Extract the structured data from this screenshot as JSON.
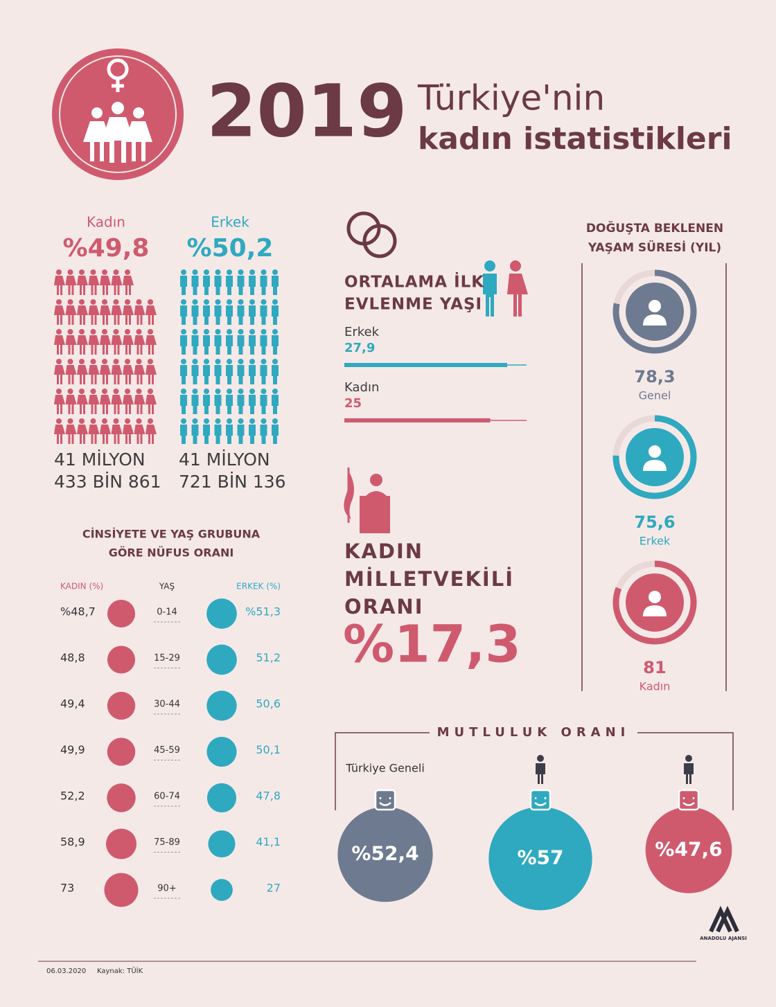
{
  "header": {
    "year": "2019",
    "title_line1": "Türkiye'nin",
    "title_line2": "kadın istatistikleri"
  },
  "population": {
    "labels": [
      "Kadın",
      "Erkek"
    ],
    "shares": [
      "%49,8",
      "%50,2"
    ],
    "counts": [
      [
        "41 MİLYON",
        "433 BİN 861"
      ],
      [
        "41 MİLYON",
        "721 BİN 136"
      ]
    ],
    "colors": [
      "#cf5a6e",
      "#2fa9bf"
    ]
  },
  "marriage": {
    "title_lines": [
      "ORTALAMA İLK",
      "EVLENME YAŞI"
    ],
    "labels": [
      "Erkek",
      "Kadın"
    ],
    "values": [
      27.9,
      25
    ],
    "value_labels": [
      "27,9",
      "25"
    ],
    "colors": [
      "#2fa9bf",
      "#cf5a6e"
    ]
  },
  "parliament": {
    "title_lines": [
      "KADIN",
      "MİLLETVEKİLİ",
      "ORANI"
    ],
    "value": "%17,3"
  },
  "life_expectancy": {
    "title_lines": [
      "DOĞUŞTA BEKLENEN",
      "YAŞAM SÜRESİ (YIL)"
    ],
    "labels": [
      "Genel",
      "Erkek",
      "Kadın"
    ],
    "values": [
      78.3,
      75.6,
      81
    ],
    "value_labels": [
      "78,3",
      "75,6",
      "81"
    ],
    "colors": [
      "#6e7a8f",
      "#2fa9bf",
      "#cf5a6e"
    ]
  },
  "age_groups": {
    "title_lines": [
      "CİNSİYETE VE YAŞ GRUBUNA",
      "GÖRE NÜFUS ORANI"
    ],
    "headers": [
      "KADIN (%)",
      "YAŞ",
      "ERKEK (%)"
    ],
    "ages": [
      "0-14",
      "15-29",
      "30-44",
      "45-59",
      "60-74",
      "75-89",
      "90+"
    ],
    "kadin_values": [
      48.7,
      48.8,
      49.4,
      49.9,
      52.2,
      58.9,
      73
    ],
    "kadin_labels": [
      "%48,7",
      "48,8",
      "49,4",
      "49,9",
      "52,2",
      "58,9",
      "73"
    ],
    "erkek_values": [
      51.3,
      51.2,
      50.6,
      50.1,
      47.8,
      41.1,
      27
    ],
    "erkek_labels": [
      "%51,3",
      "51,2",
      "50,6",
      "50,1",
      "47,8",
      "41,1",
      "27"
    ]
  },
  "happiness": {
    "title": "MUTLULUK ORANI",
    "general_label": "Türkiye Geneli",
    "values": [
      52.4,
      57,
      47.6
    ],
    "value_labels": [
      "%52,4",
      "%57",
      "%47,6"
    ],
    "colors": [
      "#6e7a8f",
      "#2fa9bf",
      "#cf5a6e"
    ]
  },
  "footer": {
    "date": "06.03.2020",
    "source": "Kaynak: TÜİK",
    "logo_text": "ANADOLU AJANSI"
  }
}
